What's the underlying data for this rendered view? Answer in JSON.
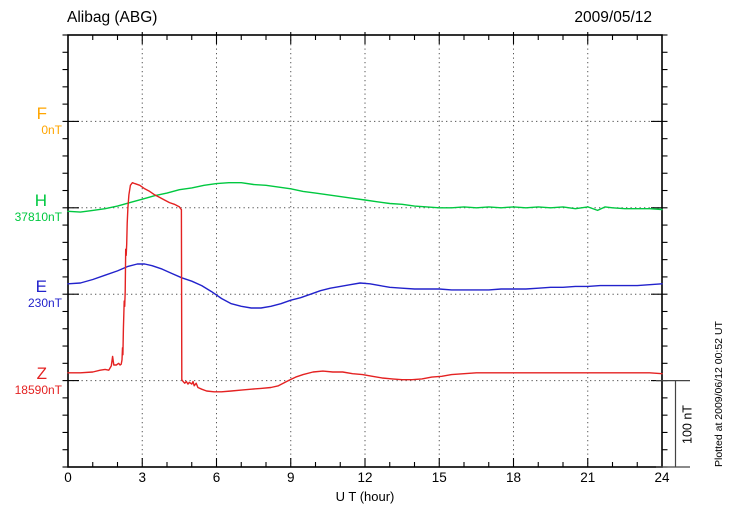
{
  "header": {
    "title": "Alibag (ABG)",
    "date": "2009/05/12"
  },
  "notes": {
    "plotted_at": "Plotted at 2009/06/12 00:52 UT"
  },
  "chart_data": {
    "type": "line",
    "station": "Alibag (ABG)",
    "date": "2009/05/12",
    "xlabel": "U T (hour)",
    "x_range_hours": [
      0,
      24
    ],
    "x_tick_labels": [
      "0",
      "3",
      "6",
      "9",
      "12",
      "15",
      "18",
      "21",
      "24"
    ],
    "x_major_tick_hours": 3,
    "x_minor_tick_hours": 1,
    "y_tick_interval_nT": 20,
    "baseline_spacing_nT": 100,
    "grid": "dotted",
    "legend_position": "left",
    "scale_bar": {
      "label": "100 nT",
      "value_nT": 100
    },
    "series": [
      {
        "component": "F",
        "baseline_value": "0nT",
        "color": "#FFA500",
        "points": []
      },
      {
        "component": "H",
        "baseline_value": "37810nT",
        "color": "#00C840",
        "points": [
          [
            0,
            -4
          ],
          [
            0.5,
            -5
          ],
          [
            1,
            -3
          ],
          [
            1.5,
            -1
          ],
          [
            2,
            2
          ],
          [
            2.5,
            6
          ],
          [
            3,
            10
          ],
          [
            3.5,
            14
          ],
          [
            4,
            17
          ],
          [
            4.5,
            21
          ],
          [
            5,
            23
          ],
          [
            5.5,
            26
          ],
          [
            6,
            28
          ],
          [
            6.5,
            29
          ],
          [
            7,
            29
          ],
          [
            7.5,
            27
          ],
          [
            8,
            26
          ],
          [
            8.5,
            24
          ],
          [
            9,
            22
          ],
          [
            9.5,
            19
          ],
          [
            10,
            17
          ],
          [
            10.5,
            15
          ],
          [
            11,
            13
          ],
          [
            11.5,
            11
          ],
          [
            12,
            9
          ],
          [
            12.5,
            7
          ],
          [
            13,
            5
          ],
          [
            13.5,
            4
          ],
          [
            14,
            2
          ],
          [
            14.5,
            1
          ],
          [
            15,
            0
          ],
          [
            15.5,
            0
          ],
          [
            16,
            1
          ],
          [
            16.5,
            0
          ],
          [
            17,
            1
          ],
          [
            17.5,
            0
          ],
          [
            18,
            1
          ],
          [
            18.5,
            0
          ],
          [
            19,
            1
          ],
          [
            19.5,
            0
          ],
          [
            20,
            1
          ],
          [
            20.5,
            -1
          ],
          [
            21,
            1
          ],
          [
            21.4,
            -3
          ],
          [
            21.7,
            1
          ],
          [
            22,
            0
          ],
          [
            22.5,
            -1
          ],
          [
            23,
            -1
          ],
          [
            23.5,
            -1
          ],
          [
            24,
            -2
          ]
        ]
      },
      {
        "component": "E",
        "baseline_value": "230nT",
        "color": "#2222CC",
        "points": [
          [
            0,
            12
          ],
          [
            0.5,
            13
          ],
          [
            1,
            17
          ],
          [
            1.5,
            22
          ],
          [
            2,
            27
          ],
          [
            2.4,
            32
          ],
          [
            2.8,
            35
          ],
          [
            3.1,
            35
          ],
          [
            3.4,
            33
          ],
          [
            3.8,
            29
          ],
          [
            4.2,
            24
          ],
          [
            4.6,
            19
          ],
          [
            5,
            15
          ],
          [
            5.4,
            10
          ],
          [
            5.8,
            3
          ],
          [
            6.2,
            -5
          ],
          [
            6.6,
            -11
          ],
          [
            7,
            -14
          ],
          [
            7.4,
            -16
          ],
          [
            7.8,
            -16
          ],
          [
            8.2,
            -14
          ],
          [
            8.6,
            -11
          ],
          [
            9,
            -7
          ],
          [
            9.4,
            -4
          ],
          [
            9.8,
            0
          ],
          [
            10.2,
            4
          ],
          [
            10.6,
            7
          ],
          [
            11,
            9
          ],
          [
            11.4,
            11
          ],
          [
            11.8,
            13
          ],
          [
            12.2,
            12
          ],
          [
            12.6,
            10
          ],
          [
            13,
            8
          ],
          [
            13.5,
            7
          ],
          [
            14,
            6
          ],
          [
            14.5,
            6
          ],
          [
            15,
            6
          ],
          [
            15.5,
            5
          ],
          [
            16,
            5
          ],
          [
            16.5,
            5
          ],
          [
            17,
            5
          ],
          [
            17.5,
            6
          ],
          [
            18,
            6
          ],
          [
            18.5,
            6
          ],
          [
            19,
            7
          ],
          [
            19.5,
            8
          ],
          [
            20,
            8
          ],
          [
            20.5,
            9
          ],
          [
            21,
            9
          ],
          [
            21.5,
            10
          ],
          [
            22,
            10
          ],
          [
            22.5,
            10
          ],
          [
            23,
            10
          ],
          [
            23.5,
            11
          ],
          [
            24,
            12
          ]
        ]
      },
      {
        "component": "Z",
        "baseline_value": "18590nT",
        "color": "#E42222",
        "points": [
          [
            0,
            9
          ],
          [
            0.5,
            9
          ],
          [
            1,
            10
          ],
          [
            1.3,
            12
          ],
          [
            1.5,
            13
          ],
          [
            1.65,
            12
          ],
          [
            1.75,
            17
          ],
          [
            1.8,
            28
          ],
          [
            1.85,
            18
          ],
          [
            1.95,
            18
          ],
          [
            2.05,
            20
          ],
          [
            2.1,
            18
          ],
          [
            2.15,
            19
          ],
          [
            2.18,
            24
          ],
          [
            2.2,
            38
          ],
          [
            2.22,
            30
          ],
          [
            2.24,
            60
          ],
          [
            2.27,
            92
          ],
          [
            2.29,
            86
          ],
          [
            2.31,
            103
          ],
          [
            2.33,
            152
          ],
          [
            2.35,
            145
          ],
          [
            2.37,
            158
          ],
          [
            2.39,
            182
          ],
          [
            2.42,
            200
          ],
          [
            2.46,
            215
          ],
          [
            2.52,
            226
          ],
          [
            2.6,
            229
          ],
          [
            2.7,
            228
          ],
          [
            2.9,
            226
          ],
          [
            3.1,
            222
          ],
          [
            3.3,
            219
          ],
          [
            3.5,
            215
          ],
          [
            3.7,
            212
          ],
          [
            3.9,
            209
          ],
          [
            4.1,
            206
          ],
          [
            4.3,
            204
          ],
          [
            4.5,
            201
          ],
          [
            4.55,
            199
          ],
          [
            4.58,
            198
          ],
          [
            4.6,
            1
          ],
          [
            4.65,
            -1
          ],
          [
            4.72,
            -3
          ],
          [
            4.78,
            -1
          ],
          [
            4.85,
            -4
          ],
          [
            4.9,
            -2
          ],
          [
            5,
            -4
          ],
          [
            5.05,
            -1
          ],
          [
            5.1,
            -6
          ],
          [
            5.18,
            -3
          ],
          [
            5.25,
            -8
          ],
          [
            5.4,
            -10
          ],
          [
            5.6,
            -12
          ],
          [
            5.9,
            -13
          ],
          [
            6.2,
            -13
          ],
          [
            6.6,
            -12
          ],
          [
            7,
            -11
          ],
          [
            7.4,
            -10
          ],
          [
            7.8,
            -9
          ],
          [
            8.2,
            -8
          ],
          [
            8.5,
            -6
          ],
          [
            8.9,
            0
          ],
          [
            9.2,
            4
          ],
          [
            9.5,
            7
          ],
          [
            9.9,
            10
          ],
          [
            10.3,
            11
          ],
          [
            10.7,
            10
          ],
          [
            11.1,
            10
          ],
          [
            11.5,
            8
          ],
          [
            11.9,
            7
          ],
          [
            12.3,
            5
          ],
          [
            12.7,
            3
          ],
          [
            13.1,
            2
          ],
          [
            13.5,
            1
          ],
          [
            13.9,
            1
          ],
          [
            14.3,
            2
          ],
          [
            14.7,
            4
          ],
          [
            15.1,
            5
          ],
          [
            15.5,
            7
          ],
          [
            16,
            8
          ],
          [
            16.5,
            9
          ],
          [
            17,
            9
          ],
          [
            17.5,
            9
          ],
          [
            18,
            9
          ],
          [
            18.5,
            9
          ],
          [
            19,
            9
          ],
          [
            19.5,
            9
          ],
          [
            20,
            9
          ],
          [
            20.5,
            9
          ],
          [
            21,
            9
          ],
          [
            21.5,
            9
          ],
          [
            22,
            9
          ],
          [
            22.5,
            9
          ],
          [
            23,
            9
          ],
          [
            23.5,
            9
          ],
          [
            24,
            8
          ]
        ]
      }
    ]
  }
}
